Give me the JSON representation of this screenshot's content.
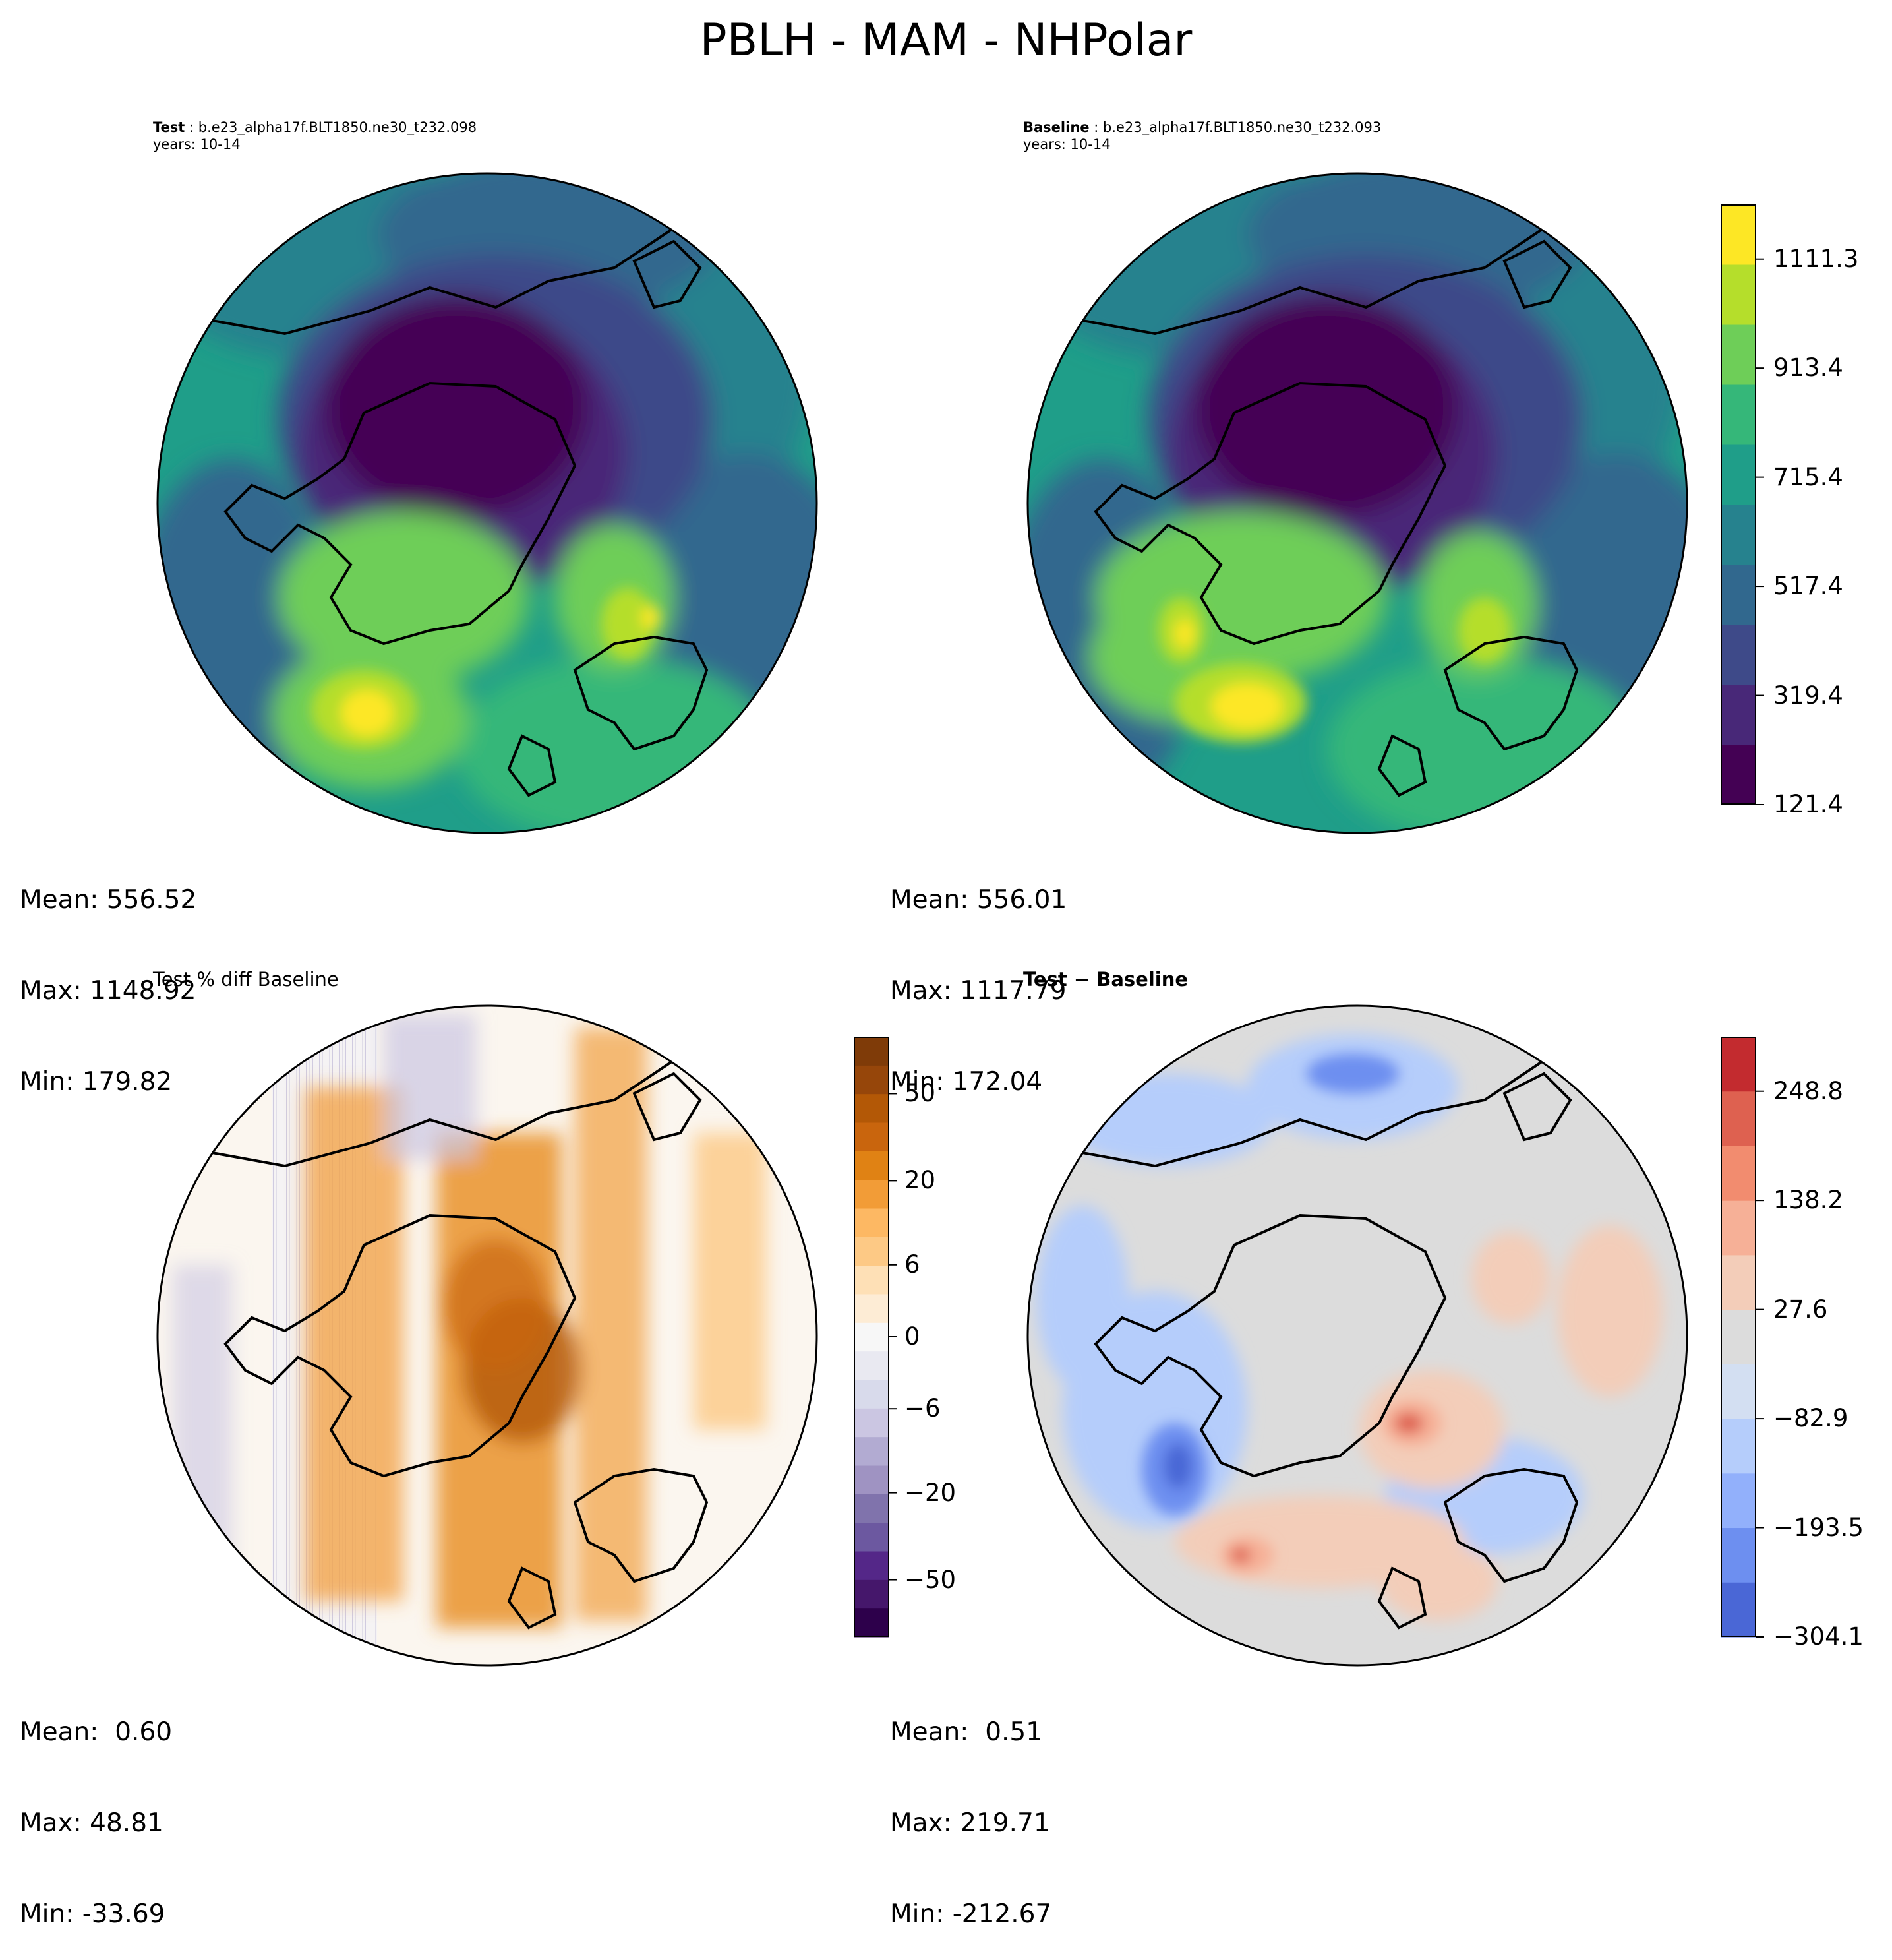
{
  "figure": {
    "title": "PBLH - MAM - NHPolar"
  },
  "panels": {
    "test": {
      "label_bold": "Test",
      "label_sep": " : ",
      "case": "b.e23_alpha17f.BLT1850.ne30_t232.098",
      "years": "years: 10-14",
      "stats": {
        "mean": "Mean: 556.52",
        "max": "Max: 1148.92",
        "min": "Min: 179.82"
      }
    },
    "baseline": {
      "label_bold": "Baseline",
      "label_sep": " : ",
      "case": "b.e23_alpha17f.BLT1850.ne30_t232.093",
      "years": "years: 10-14",
      "stats": {
        "mean": "Mean: 556.01",
        "max": "Max: 1117.79",
        "min": "Min: 172.04"
      }
    },
    "pct_diff": {
      "title": "Test % diff Baseline",
      "stats": {
        "mean": "Mean:  0.60",
        "max": "Max: 48.81",
        "min": "Min: -33.69"
      }
    },
    "diff": {
      "title": "Test − Baseline",
      "stats": {
        "mean": "Mean:  0.51",
        "max": "Max: 219.71",
        "min": "Min: -212.67"
      }
    }
  },
  "colorbars": {
    "main": {
      "colormap": "viridis",
      "tick_labels": [
        "121.4",
        "319.4",
        "517.4",
        "715.4",
        "913.4",
        "1111.3"
      ],
      "colors": [
        "#440154",
        "#482878",
        "#3e4a89",
        "#31688e",
        "#26828e",
        "#1f9e89",
        "#35b779",
        "#6ece58",
        "#b5de2b",
        "#fde725"
      ]
    },
    "pct": {
      "colormap": "PuOr_r",
      "tick_labels": [
        "−50",
        "−20",
        "−6",
        "0",
        "6",
        "20",
        "50"
      ],
      "colors": [
        "#2d004b",
        "#45176b",
        "#542788",
        "#6c58a0",
        "#8073ac",
        "#9f93c2",
        "#b2abd2",
        "#cbc6e2",
        "#d8daeb",
        "#e9e9f1",
        "#f7f7f7",
        "#fdecd5",
        "#fee0b6",
        "#fdc985",
        "#fdb863",
        "#f29c37",
        "#e08214",
        "#c9650d",
        "#b35806",
        "#96460a",
        "#7f3b08"
      ]
    },
    "diff": {
      "colormap": "coolwarm",
      "tick_labels": [
        "−304.1",
        "−193.5",
        "−82.9",
        "27.6",
        "138.2",
        "248.8"
      ],
      "colors": [
        "#4a67d6",
        "#6d8ff0",
        "#92b0fb",
        "#b5cdfb",
        "#d3dff2",
        "#dcdcdc",
        "#f3cdb9",
        "#f6b097",
        "#f28c6f",
        "#de6150",
        "#c32b2f"
      ]
    }
  }
}
